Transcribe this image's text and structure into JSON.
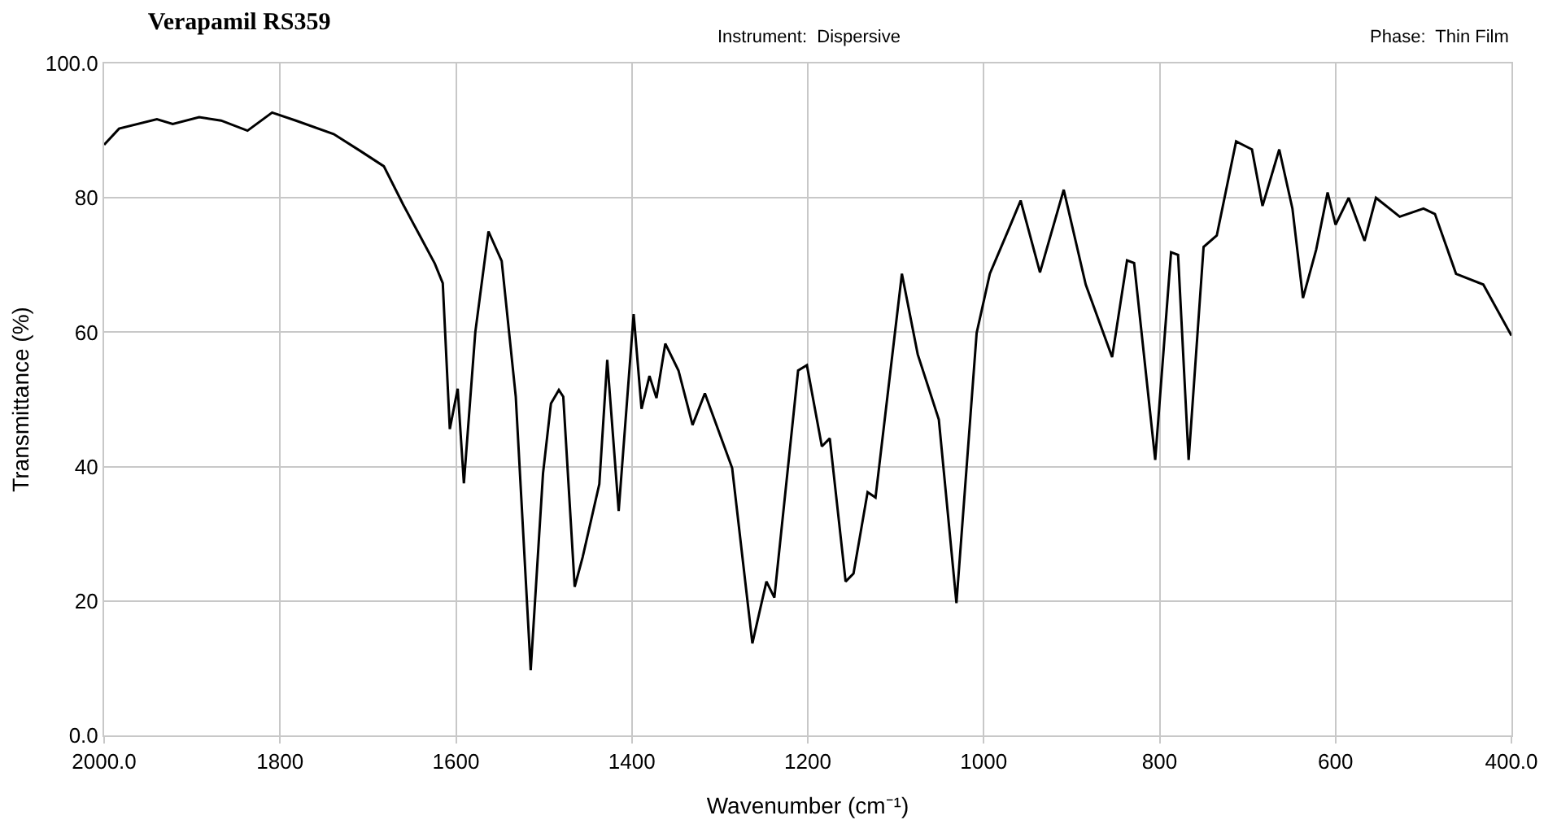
{
  "chart_data": {
    "type": "line",
    "title": "Verapamil RS359",
    "xlabel": "Wavenumber (cm⁻¹)",
    "ylabel": "Transmittance (%)",
    "annotations": [
      "Instrument:  Dispersive",
      "Phase:  Thin Film"
    ],
    "x": [
      2000,
      1983,
      1940,
      1922,
      1892,
      1867,
      1837,
      1809,
      1782,
      1739,
      1709,
      1682,
      1660,
      1642,
      1624,
      1615,
      1607,
      1598,
      1591,
      1578,
      1563,
      1548,
      1532,
      1515,
      1501,
      1492,
      1483,
      1478,
      1465,
      1456,
      1437,
      1428,
      1415,
      1398,
      1389,
      1380,
      1372,
      1362,
      1347,
      1331,
      1317,
      1286,
      1263,
      1247,
      1238,
      1211,
      1201,
      1184,
      1175,
      1157,
      1148,
      1132,
      1123,
      1093,
      1075,
      1051,
      1031,
      1008,
      993,
      972,
      958,
      936,
      909,
      884,
      854,
      837,
      829,
      805,
      787,
      779,
      767,
      750,
      735,
      713,
      695,
      683,
      664,
      649,
      637,
      622,
      609,
      600,
      585,
      567,
      554,
      527,
      500,
      487,
      463,
      432,
      400
    ],
    "series": [
      {
        "color": "#000000",
        "values": [
          87.9,
          90.3,
          91.7,
          91,
          92,
          91.5,
          90,
          92.7,
          91.5,
          89.5,
          87,
          84.7,
          79,
          74.6,
          70.2,
          67.3,
          45.6,
          51.6,
          37.5,
          60,
          75,
          70.6,
          50.4,
          9.7,
          39,
          49.4,
          51.4,
          50.4,
          22.1,
          26.5,
          37.4,
          55.9,
          33.4,
          62.7,
          48.6,
          53.5,
          50.2,
          58.3,
          54.3,
          46.2,
          50.9,
          39.8,
          13.7,
          22.9,
          20.5,
          54.3,
          55.1,
          43,
          44.2,
          22.9,
          24.1,
          36.2,
          35.4,
          68.7,
          56.7,
          47,
          19.7,
          59.9,
          68.7,
          75.2,
          79.6,
          68.9,
          81.2,
          67.1,
          56.3,
          70.7,
          70.3,
          41,
          71.9,
          71.5,
          41,
          72.7,
          74.4,
          88.4,
          87.2,
          78.8,
          87.2,
          78.4,
          65.1,
          72.3,
          80.8,
          76,
          80,
          73.6,
          80,
          77.2,
          78.4,
          77.6,
          68.7,
          67.1,
          59.5
        ]
      }
    ],
    "xlim": [
      2000,
      400
    ],
    "xticks": [
      {
        "value": 2000,
        "label": "2000.0"
      },
      1800,
      1600,
      1400,
      1200,
      1000,
      800,
      600,
      {
        "value": 400,
        "label": "400.0"
      }
    ],
    "ylim": [
      0,
      100
    ],
    "yticks": [
      {
        "value": 0,
        "label": "0.0"
      },
      20,
      40,
      60,
      80,
      {
        "value": 100,
        "label": "100.0"
      }
    ],
    "grid": true,
    "marker": "none",
    "line_style": "solid"
  }
}
